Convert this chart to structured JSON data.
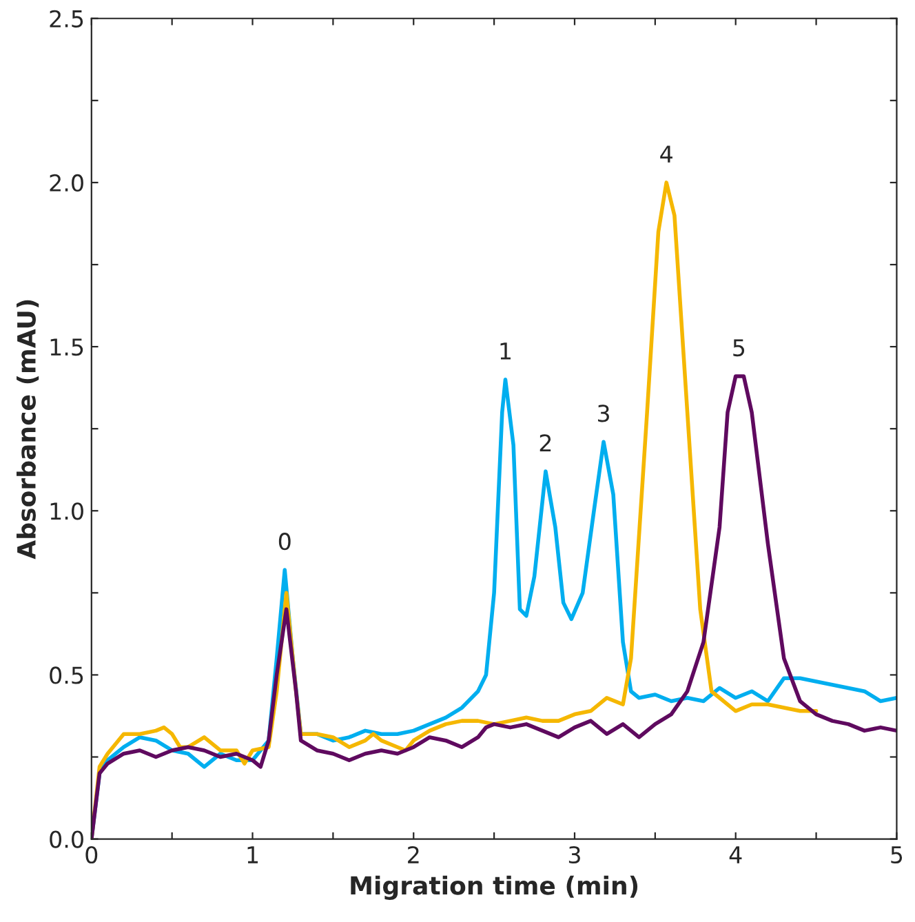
{
  "chart_data": {
    "type": "line",
    "xlabel": "Migration time (min)",
    "ylabel": "Absorbance (mAU)",
    "xlim": [
      0,
      5
    ],
    "ylim": [
      0,
      2.5
    ],
    "xticks": [
      0,
      {
        "value": 0.5,
        "label": null
      },
      1,
      {
        "value": 1.5,
        "label": null
      },
      2,
      {
        "value": 2.5,
        "label": null
      },
      3,
      {
        "value": 3.5,
        "label": null
      },
      4,
      {
        "value": 4.5,
        "label": null
      },
      5
    ],
    "yticks": [
      {
        "value": 0,
        "label": "0.0"
      },
      {
        "value": 0.25,
        "label": null
      },
      {
        "value": 0.5,
        "label": "0.5"
      },
      {
        "value": 0.75,
        "label": null
      },
      {
        "value": 1,
        "label": "1.0"
      },
      {
        "value": 1.25,
        "label": null
      },
      {
        "value": 1.5,
        "label": "1.5"
      },
      {
        "value": 1.75,
        "label": null
      },
      {
        "value": 2,
        "label": "2.0"
      },
      {
        "value": 2.25,
        "label": null
      },
      {
        "value": 2.5,
        "label": "2.5"
      }
    ],
    "grid": false,
    "legend": false,
    "marker": "none",
    "line_style": "solid",
    "series": [
      {
        "color": "#00aeef",
        "x": [
          0,
          0.05,
          0.1,
          0.2,
          0.3,
          0.4,
          0.5,
          0.6,
          0.7,
          0.8,
          0.9,
          1.0,
          1.1,
          1.15,
          1.2,
          1.25,
          1.3,
          1.4,
          1.5,
          1.6,
          1.7,
          1.8,
          1.9,
          2.0,
          2.1,
          2.2,
          2.3,
          2.4,
          2.45,
          2.5,
          2.55,
          2.57,
          2.62,
          2.66,
          2.7,
          2.75,
          2.82,
          2.88,
          2.93,
          2.98,
          3.05,
          3.12,
          3.18,
          3.24,
          3.3,
          3.35,
          3.4,
          3.5,
          3.6,
          3.7,
          3.8,
          3.9,
          4.0,
          4.1,
          4.2,
          4.3,
          4.4,
          4.5,
          4.6,
          4.7,
          4.8,
          4.9,
          5.0
        ],
        "values": [
          0,
          0.2,
          0.24,
          0.28,
          0.31,
          0.3,
          0.27,
          0.26,
          0.22,
          0.26,
          0.24,
          0.24,
          0.3,
          0.55,
          0.82,
          0.55,
          0.32,
          0.32,
          0.3,
          0.31,
          0.33,
          0.32,
          0.32,
          0.33,
          0.35,
          0.37,
          0.4,
          0.45,
          0.5,
          0.75,
          1.3,
          1.4,
          1.2,
          0.7,
          0.68,
          0.8,
          1.12,
          0.95,
          0.72,
          0.67,
          0.75,
          1.0,
          1.21,
          1.05,
          0.6,
          0.45,
          0.43,
          0.44,
          0.42,
          0.43,
          0.42,
          0.46,
          0.43,
          0.45,
          0.42,
          0.49,
          0.49,
          0.48,
          0.47,
          0.46,
          0.45,
          0.42,
          0.43
        ]
      },
      {
        "color": "#f5b700",
        "x": [
          0,
          0.05,
          0.1,
          0.2,
          0.3,
          0.4,
          0.45,
          0.5,
          0.55,
          0.6,
          0.7,
          0.8,
          0.9,
          0.95,
          1.0,
          1.1,
          1.15,
          1.21,
          1.27,
          1.3,
          1.4,
          1.5,
          1.6,
          1.7,
          1.75,
          1.8,
          1.9,
          1.95,
          2.0,
          2.1,
          2.2,
          2.3,
          2.4,
          2.5,
          2.6,
          2.7,
          2.8,
          2.9,
          3.0,
          3.1,
          3.2,
          3.3,
          3.35,
          3.45,
          3.52,
          3.57,
          3.62,
          3.7,
          3.78,
          3.85,
          3.9,
          4.0,
          4.1,
          4.2,
          4.3,
          4.4,
          4.5
        ],
        "values": [
          0,
          0.22,
          0.26,
          0.32,
          0.32,
          0.33,
          0.34,
          0.32,
          0.28,
          0.28,
          0.31,
          0.27,
          0.27,
          0.23,
          0.27,
          0.28,
          0.45,
          0.75,
          0.45,
          0.32,
          0.32,
          0.31,
          0.28,
          0.3,
          0.32,
          0.3,
          0.28,
          0.27,
          0.3,
          0.33,
          0.35,
          0.36,
          0.36,
          0.35,
          0.36,
          0.37,
          0.36,
          0.36,
          0.38,
          0.39,
          0.43,
          0.41,
          0.55,
          1.3,
          1.85,
          2.0,
          1.9,
          1.3,
          0.7,
          0.45,
          0.43,
          0.39,
          0.41,
          0.41,
          0.4,
          0.39,
          0.39
        ]
      },
      {
        "color": "#5f0a5f",
        "x": [
          0,
          0.05,
          0.1,
          0.2,
          0.3,
          0.4,
          0.5,
          0.6,
          0.7,
          0.8,
          0.9,
          1.0,
          1.05,
          1.1,
          1.15,
          1.21,
          1.27,
          1.3,
          1.4,
          1.5,
          1.6,
          1.7,
          1.8,
          1.9,
          2.0,
          2.1,
          2.2,
          2.3,
          2.4,
          2.45,
          2.5,
          2.6,
          2.7,
          2.8,
          2.9,
          3.0,
          3.1,
          3.2,
          3.3,
          3.4,
          3.5,
          3.6,
          3.7,
          3.8,
          3.9,
          3.95,
          4.0,
          4.05,
          4.1,
          4.2,
          4.3,
          4.4,
          4.5,
          4.6,
          4.7,
          4.8,
          4.9,
          5.0
        ],
        "values": [
          0,
          0.2,
          0.23,
          0.26,
          0.27,
          0.25,
          0.27,
          0.28,
          0.27,
          0.25,
          0.26,
          0.24,
          0.22,
          0.3,
          0.5,
          0.7,
          0.45,
          0.3,
          0.27,
          0.26,
          0.24,
          0.26,
          0.27,
          0.26,
          0.28,
          0.31,
          0.3,
          0.28,
          0.31,
          0.34,
          0.35,
          0.34,
          0.35,
          0.33,
          0.31,
          0.34,
          0.36,
          0.32,
          0.35,
          0.31,
          0.35,
          0.38,
          0.45,
          0.6,
          0.95,
          1.3,
          1.41,
          1.41,
          1.3,
          0.9,
          0.55,
          0.42,
          0.38,
          0.36,
          0.35,
          0.33,
          0.34,
          0.33
        ]
      }
    ],
    "annotations": [
      {
        "text": "0",
        "x": 1.2,
        "y": 0.82
      },
      {
        "text": "1",
        "x": 2.57,
        "y": 1.4
      },
      {
        "text": "2",
        "x": 2.82,
        "y": 1.12
      },
      {
        "text": "3",
        "x": 3.18,
        "y": 1.21
      },
      {
        "text": "4",
        "x": 3.57,
        "y": 2.0
      },
      {
        "text": "5",
        "x": 4.02,
        "y": 1.41
      }
    ]
  }
}
